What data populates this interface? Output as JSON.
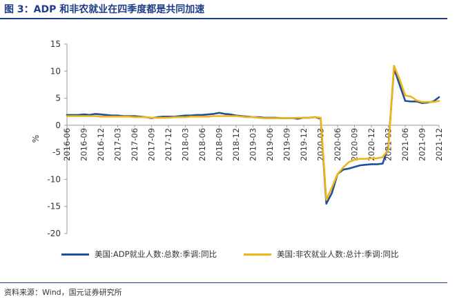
{
  "header": {
    "title": "图 3：ADP 和非农就业在四季度都是共同加速"
  },
  "footer": {
    "source": "资料来源：Wind，国元证券研究所"
  },
  "colors": {
    "adp": "#1c4f9c",
    "nfp": "#f0b414",
    "axis": "#999999",
    "title": "#1f3c88"
  },
  "chart_data": {
    "type": "line",
    "title": "图 3：ADP 和非农就业在四季度都是共同加速",
    "xlabel": "",
    "ylabel": "%",
    "ylim": [
      -20,
      15
    ],
    "yticks": [
      15,
      10,
      5,
      0,
      -5,
      -10,
      -15,
      -20
    ],
    "grid": false,
    "legend_position": "bottom",
    "xticks": [
      "2016-06",
      "2016-09",
      "2016-12",
      "2017-03",
      "2017-06",
      "2017-09",
      "2017-12",
      "2018-03",
      "2018-06",
      "2018-09",
      "2018-12",
      "2019-03",
      "2019-06",
      "2019-09",
      "2019-12",
      "2020-03",
      "2020-06",
      "2020-09",
      "2020-12",
      "2021-03",
      "2021-06",
      "2021-09",
      "2021-12"
    ],
    "x": [
      "2016-06",
      "2016-07",
      "2016-08",
      "2016-09",
      "2016-10",
      "2016-11",
      "2016-12",
      "2017-01",
      "2017-02",
      "2017-03",
      "2017-04",
      "2017-05",
      "2017-06",
      "2017-07",
      "2017-08",
      "2017-09",
      "2017-10",
      "2017-11",
      "2017-12",
      "2018-01",
      "2018-02",
      "2018-03",
      "2018-04",
      "2018-05",
      "2018-06",
      "2018-07",
      "2018-08",
      "2018-09",
      "2018-10",
      "2018-11",
      "2018-12",
      "2019-01",
      "2019-02",
      "2019-03",
      "2019-04",
      "2019-05",
      "2019-06",
      "2019-07",
      "2019-08",
      "2019-09",
      "2019-10",
      "2019-11",
      "2019-12",
      "2020-01",
      "2020-02",
      "2020-03",
      "2020-04",
      "2020-05",
      "2020-06",
      "2020-07",
      "2020-08",
      "2020-09",
      "2020-10",
      "2020-11",
      "2020-12",
      "2021-01",
      "2021-02",
      "2021-03",
      "2021-04",
      "2021-05",
      "2021-06",
      "2021-07",
      "2021-08",
      "2021-09",
      "2021-10",
      "2021-11",
      "2021-12"
    ],
    "series": [
      {
        "name": "美国:ADP就业人数:总数:季调:同比",
        "color": "#1c4f9c",
        "values": [
          1.9,
          1.9,
          1.9,
          2.0,
          1.9,
          2.1,
          2.0,
          1.9,
          1.8,
          1.8,
          1.7,
          1.7,
          1.7,
          1.6,
          1.5,
          1.3,
          1.5,
          1.6,
          1.6,
          1.6,
          1.7,
          1.8,
          1.8,
          1.9,
          1.9,
          2.0,
          2.1,
          2.3,
          2.1,
          2.0,
          1.8,
          1.7,
          1.6,
          1.5,
          1.5,
          1.4,
          1.4,
          1.4,
          1.3,
          1.3,
          1.3,
          1.2,
          1.4,
          1.4,
          1.5,
          1.2,
          -14.5,
          -12.5,
          -9.0,
          -8.2,
          -8.0,
          -7.7,
          -7.4,
          -7.3,
          -7.2,
          -7.2,
          -7.1,
          -4.0,
          10.5,
          7.5,
          4.5,
          4.4,
          4.4,
          4.1,
          4.2,
          4.4,
          5.2
        ]
      },
      {
        "name": "美国:非农就业人数:总计:季调:同比",
        "color": "#f0b414",
        "values": [
          1.7,
          1.7,
          1.7,
          1.7,
          1.7,
          1.7,
          1.6,
          1.6,
          1.6,
          1.6,
          1.6,
          1.6,
          1.5,
          1.5,
          1.5,
          1.4,
          1.4,
          1.4,
          1.4,
          1.5,
          1.5,
          1.5,
          1.6,
          1.6,
          1.6,
          1.6,
          1.7,
          1.7,
          1.7,
          1.7,
          1.7,
          1.6,
          1.5,
          1.5,
          1.4,
          1.3,
          1.3,
          1.3,
          1.3,
          1.3,
          1.3,
          1.4,
          1.4,
          1.4,
          1.5,
          1.4,
          -13.8,
          -11.5,
          -9.0,
          -7.8,
          -6.8,
          -6.4,
          -6.2,
          -6.2,
          -6.1,
          -6.1,
          -5.9,
          -4.5,
          11.0,
          8.5,
          5.5,
          5.3,
          4.6,
          4.3,
          4.3,
          4.3,
          4.5
        ]
      }
    ]
  }
}
